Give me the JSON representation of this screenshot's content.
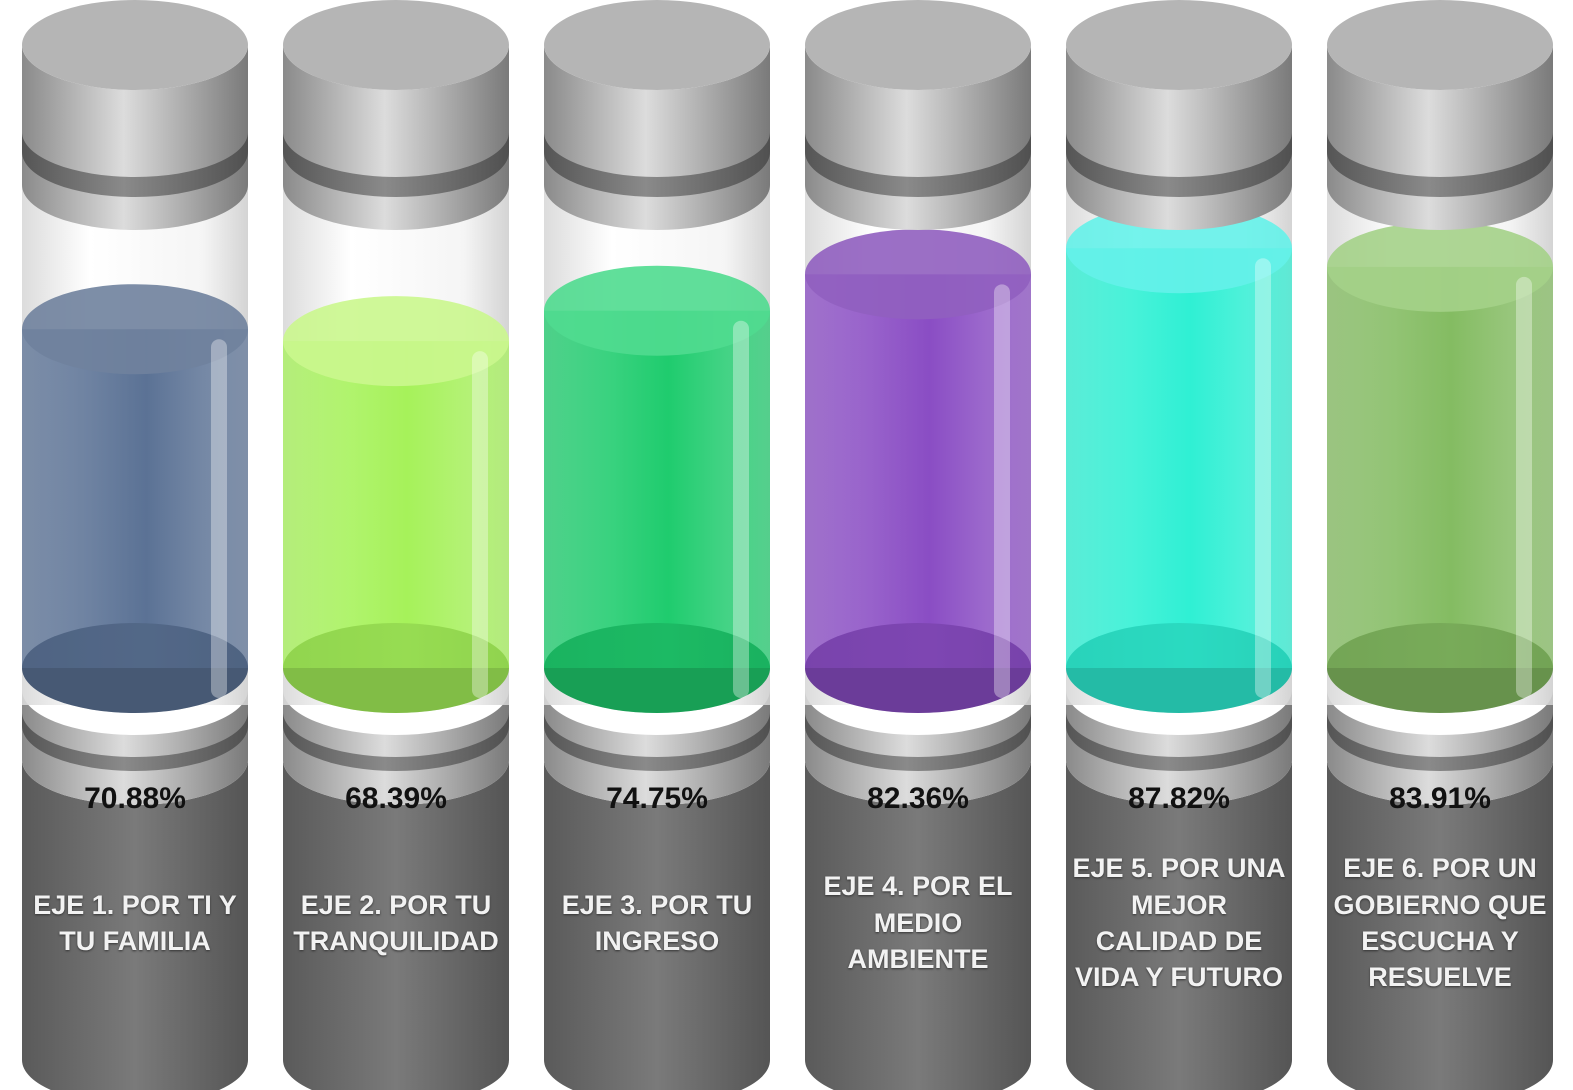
{
  "chart_data": {
    "type": "cylinder",
    "categories": [
      "EJE 1. POR TI Y TU FAMILIA",
      "EJE 2. POR TU TRANQUILIDAD",
      "EJE 3. POR TU INGRESO",
      "EJE 4. POR EL MEDIO AMBIENTE",
      "EJE 5. POR UNA MEJOR CALIDAD DE VIDA Y FUTURO",
      "EJE 6. POR UN GOBIERNO QUE ESCUCHA Y RESUELVE"
    ],
    "values": [
      70.88,
      68.39,
      74.75,
      82.36,
      87.82,
      83.91
    ],
    "value_labels": [
      "70.88%",
      "68.39%",
      "74.75%",
      "82.36%",
      "87.82%",
      "83.91%"
    ],
    "colors": [
      "#5b7295",
      "#a6f25a",
      "#1fcc6e",
      "#8a4dc4",
      "#2ff0d4",
      "#84bc62"
    ],
    "ylim": [
      0,
      100
    ]
  }
}
